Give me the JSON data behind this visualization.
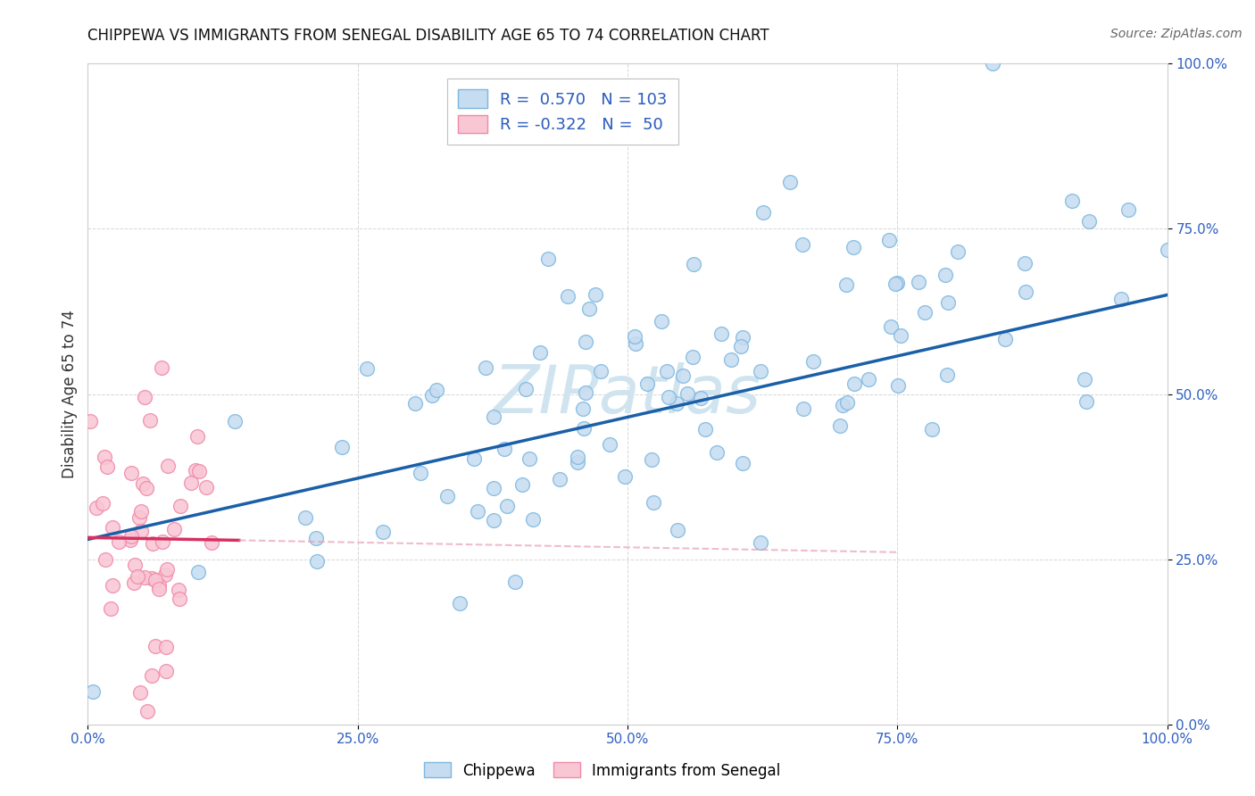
{
  "title": "CHIPPEWA VS IMMIGRANTS FROM SENEGAL DISABILITY AGE 65 TO 74 CORRELATION CHART",
  "source": "Source: ZipAtlas.com",
  "ylabel": "Disability Age 65 to 74",
  "xlim": [
    0,
    1
  ],
  "ylim": [
    0,
    1
  ],
  "xtick_labels": [
    "0.0%",
    "25.0%",
    "50.0%",
    "75.0%",
    "100.0%"
  ],
  "xtick_vals": [
    0,
    0.25,
    0.5,
    0.75,
    1.0
  ],
  "ytick_labels": [
    "0.0%",
    "25.0%",
    "50.0%",
    "75.0%",
    "100.0%"
  ],
  "ytick_vals": [
    0,
    0.25,
    0.5,
    0.75,
    1.0
  ],
  "chippewa_R": 0.57,
  "chippewa_N": 103,
  "senegal_R": -0.322,
  "senegal_N": 50,
  "blue_scatter_face": "#c6dcf0",
  "blue_scatter_edge": "#7eb8e0",
  "pink_scatter_face": "#f9c6d4",
  "pink_scatter_edge": "#f08aaa",
  "blue_line_color": "#1a5fa8",
  "pink_line_color": "#d63060",
  "pink_dash_color": "#e8a0b8",
  "watermark": "ZIPatlas",
  "watermark_color": "#d0e4f0",
  "background_color": "#ffffff",
  "axis_tick_color": "#3060c0",
  "title_color": "#111111",
  "source_color": "#666666",
  "grid_color": "#cccccc",
  "ylabel_color": "#333333"
}
